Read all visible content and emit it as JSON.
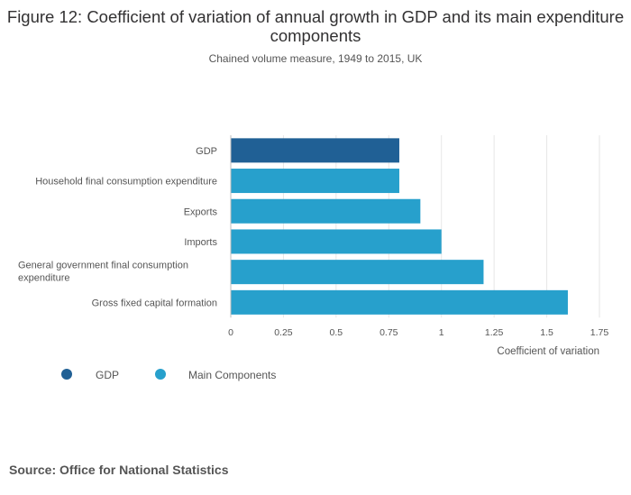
{
  "title": "Figure 12: Coefficient of variation of annual growth in GDP and its main expenditure components",
  "subtitle": "Chained volume measure, 1949 to 2015, UK",
  "source": "Source: Office for National Statistics",
  "legend": [
    {
      "label": "GDP",
      "color": "#206095"
    },
    {
      "label": "Main Components",
      "color": "#27a0cc"
    }
  ],
  "chart_data": {
    "type": "bar",
    "orientation": "horizontal",
    "categories": [
      "GDP",
      "Household final consumption expenditure",
      "Exports",
      "Imports",
      "General government final consumption expenditure",
      "Gross fixed capital formation"
    ],
    "category_lines": [
      [
        "GDP"
      ],
      [
        "Household final consumption expenditure"
      ],
      [
        "Exports"
      ],
      [
        "Imports"
      ],
      [
        "General government final consumption",
        "expenditure"
      ],
      [
        "Gross fixed capital formation"
      ]
    ],
    "values": [
      0.8,
      0.8,
      0.9,
      1.0,
      1.2,
      1.6
    ],
    "groups": [
      "GDP",
      "Main Components",
      "Main Components",
      "Main Components",
      "Main Components",
      "Main Components"
    ],
    "xlim": [
      0,
      1.75
    ],
    "ticks": [
      0,
      0.25,
      0.5,
      0.75,
      1,
      1.25,
      1.5,
      1.75
    ],
    "tick_labels": [
      "0",
      "0.25",
      "0.5",
      "0.75",
      "1",
      "1.25",
      "1.5",
      "1.75"
    ],
    "xlabel": "Coefficient of variation",
    "ylabel": "",
    "grid": true
  }
}
